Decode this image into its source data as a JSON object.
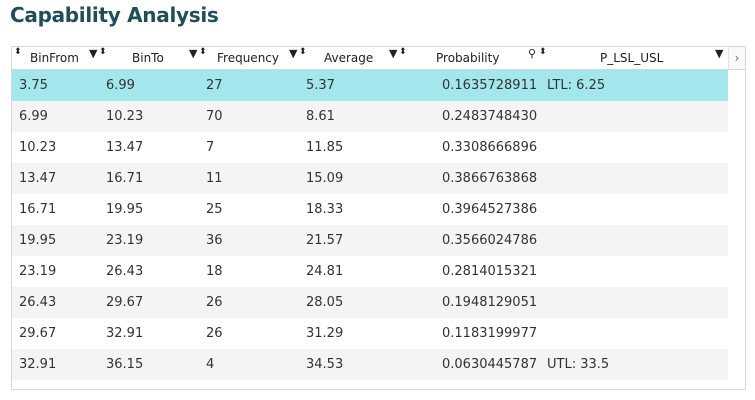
{
  "title": "Capability Analysis",
  "columns": [
    "BinFrom",
    "BinTo",
    "Frequency",
    "Average",
    "Probability",
    "P_LSL_USL"
  ],
  "rows": [
    [
      "3.75",
      "6.99",
      "27",
      "5.37",
      "0.1635728911",
      "LTL: 6.25"
    ],
    [
      "6.99",
      "10.23",
      "70",
      "8.61",
      "0.2483748430",
      ""
    ],
    [
      "10.23",
      "13.47",
      "7",
      "11.85",
      "0.3308666896",
      ""
    ],
    [
      "13.47",
      "16.71",
      "11",
      "15.09",
      "0.3866763868",
      ""
    ],
    [
      "16.71",
      "19.95",
      "25",
      "18.33",
      "0.3964527386",
      ""
    ],
    [
      "19.95",
      "23.19",
      "36",
      "21.57",
      "0.3566024786",
      ""
    ],
    [
      "23.19",
      "26.43",
      "18",
      "24.81",
      "0.2814015321",
      ""
    ],
    [
      "26.43",
      "29.67",
      "26",
      "28.05",
      "0.1948129051",
      ""
    ],
    [
      "29.67",
      "32.91",
      "26",
      "31.29",
      "0.1183199977",
      ""
    ],
    [
      "32.91",
      "36.15",
      "4",
      "34.53",
      "0.0630445787",
      "UTL: 33.5"
    ]
  ],
  "selected_row": 0,
  "colors": {
    "title": "#1f4e5b",
    "selected": "#a3e6ec",
    "alt_row": "#f4f4f4"
  },
  "icons": {
    "sort": "sort-arrows-icon",
    "filter": "filter-funnel-icon",
    "search": "search-icon",
    "scroll_right": "chevron-right-icon"
  }
}
